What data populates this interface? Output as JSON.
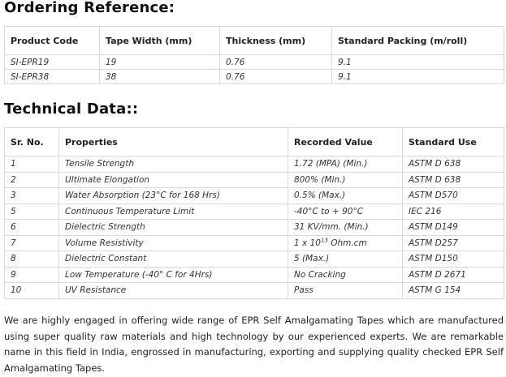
{
  "ordering": {
    "heading": "Ordering Reference:",
    "columns": [
      "Product Code",
      "Tape Width (mm)",
      "Thickness (mm)",
      "Standard Packing (m/roll)"
    ],
    "rows": [
      [
        "SI-EPR19",
        "19",
        "0.76",
        "9.1"
      ],
      [
        "SI-EPR38",
        "38",
        "0.76",
        "9.1"
      ]
    ]
  },
  "technical": {
    "heading": "Technical Data::",
    "columns": [
      "Sr. No.",
      "Properties",
      "Recorded Value",
      "Standard Use"
    ],
    "rows": [
      {
        "sr": "1",
        "property": "Tensile Strength",
        "value": "1.72 (MPA) (Min.)",
        "standard": "ASTM D 638"
      },
      {
        "sr": "2",
        "property": "Ultimate Elongation",
        "value": "800% (Min.)",
        "standard": "ASTM D 638"
      },
      {
        "sr": "3",
        "property": "Water Absorption (23°C for 168 Hrs)",
        "value": "0.5% (Max.)",
        "standard": "ASTM D570"
      },
      {
        "sr": "5",
        "property": "Continuous Temperature Limit",
        "value": "-40°C to + 90°C",
        "standard": "IEC 216"
      },
      {
        "sr": "6",
        "property": "Dielectric Strength",
        "value": "31 KV/mm. (Min.)",
        "standard": "ASTM D149"
      },
      {
        "sr": "7",
        "property": "Volume Resistivity",
        "value_base": "1 x 10",
        "value_exp": "13",
        "value_unit": " Ohm.cm",
        "standard": "ASTM D257"
      },
      {
        "sr": "8",
        "property": "Dielectric Constant",
        "value": "5 (Max.)",
        "standard": "ASTM D150"
      },
      {
        "sr": "9",
        "property": "Low Temperature (-40° C for 4Hrs)",
        "value": "No Cracking",
        "standard": "ASTM D 2671"
      },
      {
        "sr": "10",
        "property": "UV Resistance",
        "value": "Pass",
        "standard": "ASTM G 154"
      }
    ]
  },
  "description": "We are highly engaged in offering wide range of EPR Self Amalgamating Tapes which are manufactured using super quality raw materials and high technology by our experienced experts. We are remarkable name in this field in India, engrossed in manufacturing, exporting and supplying quality checked EPR Self Amalgamating Tapes."
}
